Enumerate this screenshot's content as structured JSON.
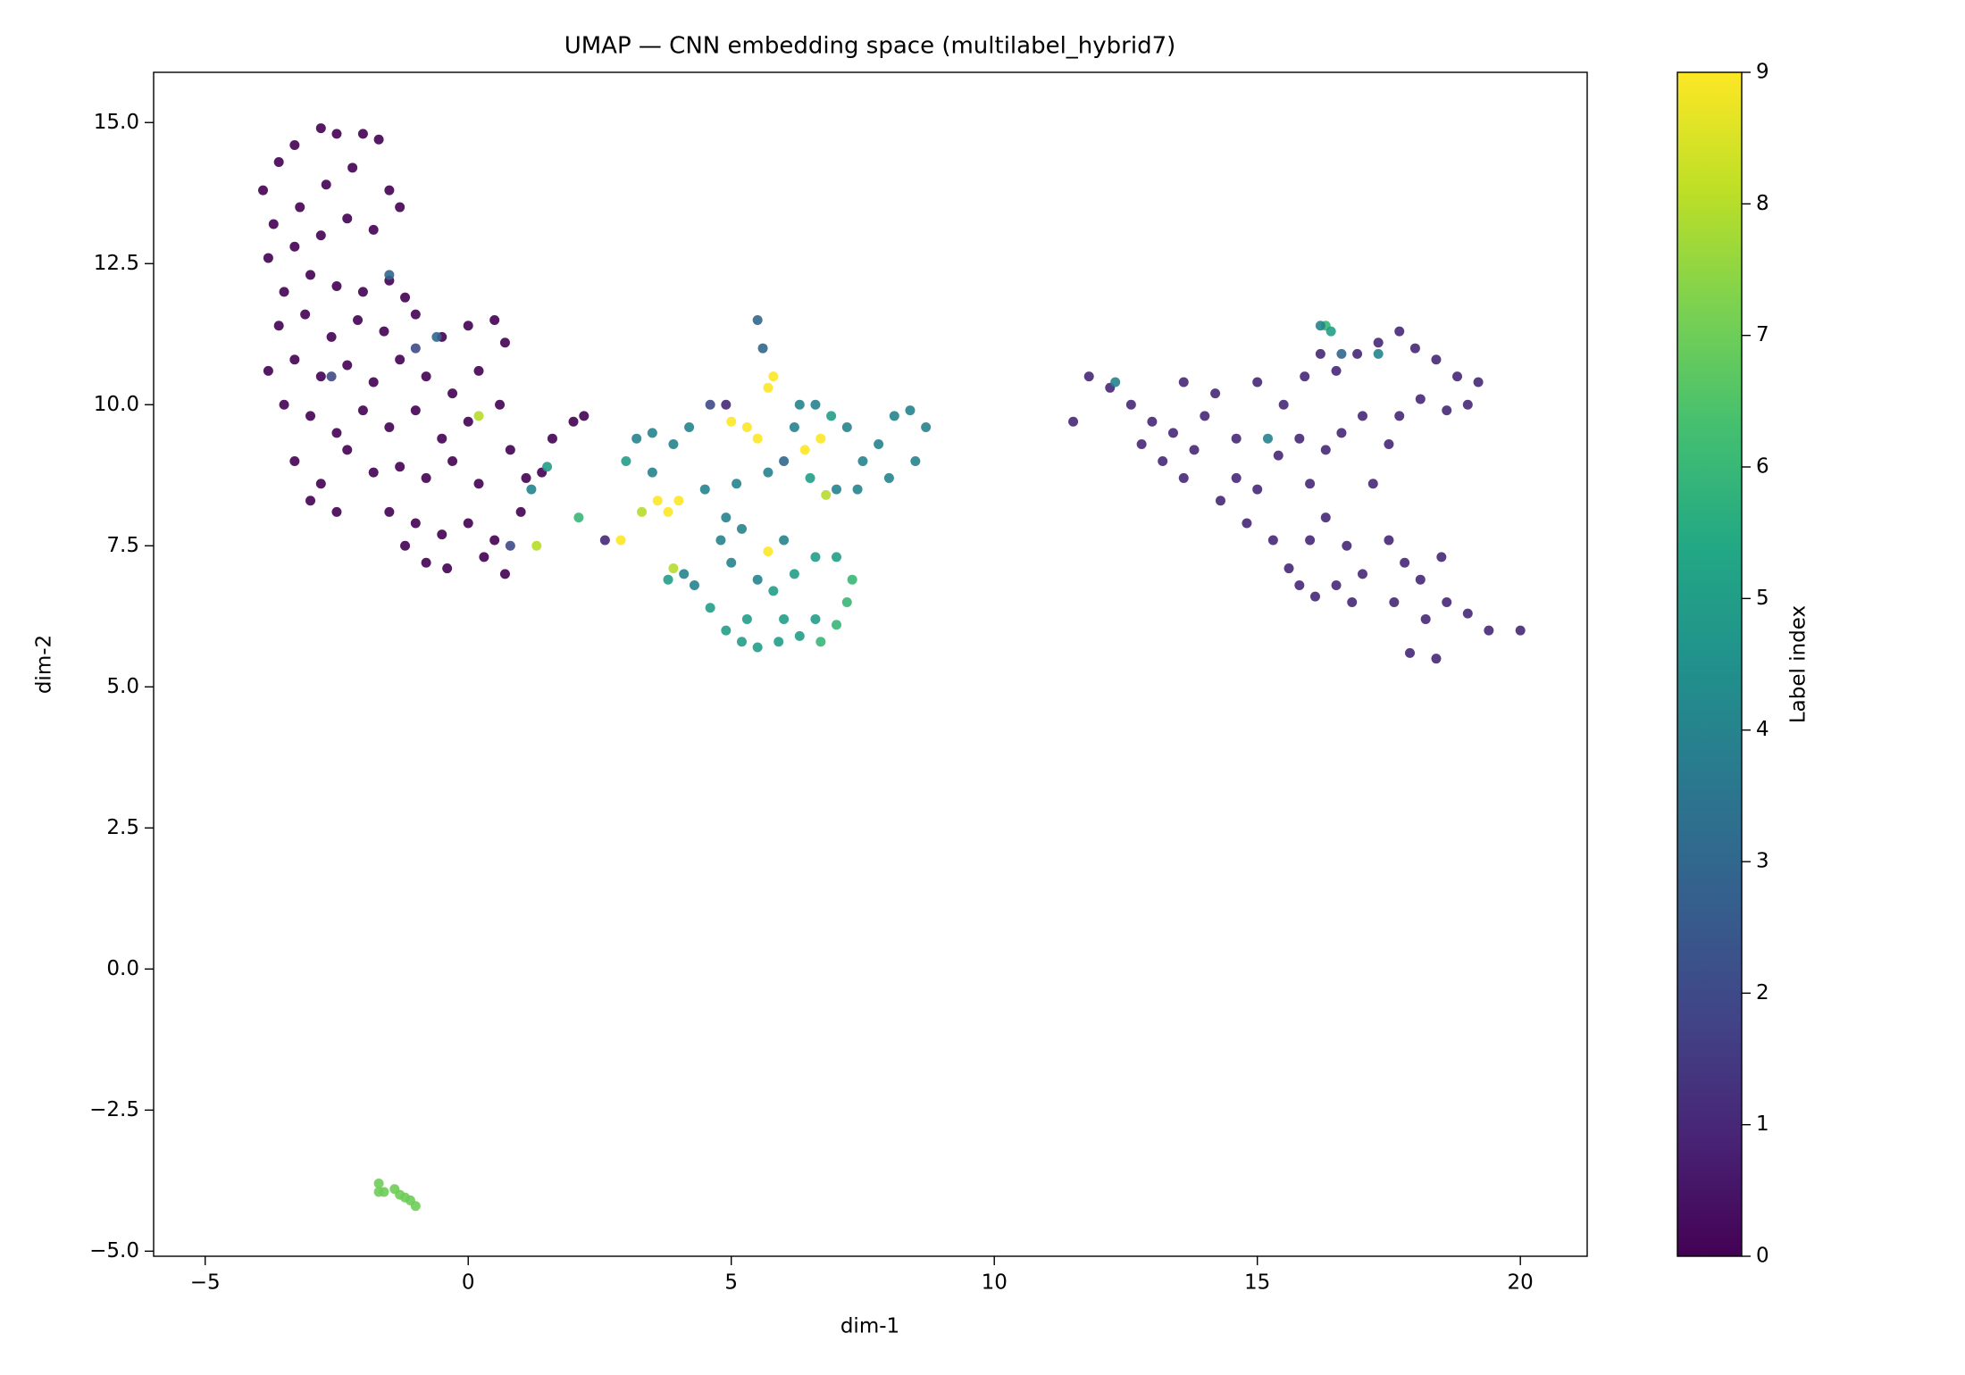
{
  "chart_data": {
    "type": "scatter",
    "title": "UMAP — CNN embedding space (multilabel_hybrid7)",
    "xlabel": "dim-1",
    "ylabel": "dim-2",
    "colormap": "viridis",
    "colorbar_label": "Label index",
    "clim": [
      0,
      9
    ],
    "cticks": [
      0,
      1,
      2,
      3,
      4,
      5,
      6,
      7,
      8,
      9
    ],
    "xlim": [
      -5.98,
      21.27
    ],
    "ylim": [
      -5.09,
      15.89
    ],
    "xticks": [
      {
        "value": -5,
        "label": "−5"
      },
      0,
      5,
      10,
      15,
      20
    ],
    "yticks": [
      {
        "value": -5,
        "label": "−5.0"
      },
      {
        "value": -2.5,
        "label": "−2.5"
      },
      {
        "value": 0,
        "label": "0.0"
      },
      {
        "value": 2.5,
        "label": "2.5"
      },
      {
        "value": 5,
        "label": "5.0"
      },
      {
        "value": 7.5,
        "label": "7.5"
      },
      {
        "value": 10,
        "label": "10.0"
      },
      {
        "value": 12.5,
        "label": "12.5"
      },
      {
        "value": 15,
        "label": "15.0"
      }
    ],
    "grid": false,
    "x": [
      -3.9,
      -3.6,
      -3.3,
      -2.8,
      -2.5,
      -2.0,
      -1.7,
      -3.7,
      -3.2,
      -2.7,
      -2.2,
      -1.5,
      -1.3,
      -3.8,
      -3.3,
      -2.8,
      -2.3,
      -1.8,
      -3.5,
      -3.0,
      -2.5,
      -2.0,
      -1.5,
      -1.2,
      -3.6,
      -3.1,
      -2.6,
      -2.1,
      -1.6,
      -1.0,
      -0.5,
      0.0,
      0.5,
      0.7,
      -3.8,
      -3.3,
      -2.8,
      -2.3,
      -1.8,
      -1.3,
      -0.8,
      -0.3,
      0.2,
      0.6,
      -3.5,
      -3.0,
      -2.5,
      -2.0,
      -1.5,
      -1.0,
      -0.5,
      0.0,
      -3.3,
      -2.8,
      -2.3,
      -1.8,
      -1.3,
      -0.8,
      -0.3,
      0.2,
      0.8,
      1.1,
      -3.0,
      -2.5,
      -1.5,
      -1.0,
      -0.5,
      0.0,
      0.5,
      1.0,
      1.4,
      -1.2,
      -0.8,
      -0.4,
      0.3,
      0.7,
      1.6,
      2.0,
      2.2,
      -1.5,
      -1.0,
      0.8,
      1.2,
      1.5,
      2.1,
      0.2,
      1.3,
      -2.6,
      -0.6,
      3.0,
      3.2,
      3.5,
      3.9,
      4.2,
      3.5,
      3.8,
      3.6,
      4.0,
      3.3,
      2.6,
      2.9,
      3.9,
      3.8,
      4.1,
      4.3,
      4.6,
      4.9,
      5.2,
      5.5,
      5.9,
      6.3,
      6.7,
      7.0,
      7.2,
      7.3,
      7.0,
      6.6,
      6.2,
      5.8,
      5.5,
      5.0,
      4.8,
      5.2,
      5.7,
      6.0,
      4.9,
      4.5,
      5.1,
      5.7,
      5.5,
      5.3,
      5.0,
      5.7,
      5.8,
      5.6,
      5.5,
      6.2,
      6.0,
      6.4,
      6.7,
      6.9,
      7.2,
      7.5,
      7.8,
      8.1,
      8.4,
      8.7,
      8.5,
      8.0,
      7.4,
      7.0,
      6.8,
      6.5,
      6.3,
      6.6,
      4.6,
      4.9,
      6.6,
      6.0,
      5.3,
      11.5,
      11.8,
      12.2,
      12.6,
      13.0,
      12.8,
      13.2,
      13.6,
      13.4,
      13.8,
      13.6,
      14.0,
      14.3,
      14.6,
      14.8,
      15.0,
      15.3,
      15.4,
      15.6,
      15.8,
      16.1,
      16.5,
      16.8,
      17.0,
      16.7,
      16.3,
      16.0,
      15.8,
      15.5,
      15.9,
      16.2,
      16.5,
      16.9,
      17.3,
      17.7,
      18.0,
      18.4,
      18.8,
      19.2,
      19.0,
      18.6,
      18.1,
      17.7,
      17.5,
      17.2,
      17.0,
      16.6,
      16.3,
      16.0,
      17.5,
      17.8,
      18.1,
      17.6,
      18.2,
      18.6,
      19.0,
      19.4,
      20.0,
      18.4,
      17.9,
      18.5,
      15.0,
      14.6,
      14.2,
      16.3,
      16.4,
      16.2,
      17.3,
      15.2,
      12.3,
      16.6,
      -1.7,
      -1.6,
      -1.4,
      -1.3,
      -1.2,
      -1.1,
      -1.0,
      -1.7
    ],
    "values": [
      13.8,
      14.3,
      14.6,
      14.9,
      14.8,
      14.8,
      14.7,
      13.2,
      13.5,
      13.9,
      14.2,
      13.8,
      13.5,
      12.6,
      12.8,
      13.0,
      13.3,
      13.1,
      12.0,
      12.3,
      12.1,
      12.0,
      12.2,
      11.9,
      11.4,
      11.6,
      11.2,
      11.5,
      11.3,
      11.6,
      11.2,
      11.4,
      11.5,
      11.1,
      10.6,
      10.8,
      10.5,
      10.7,
      10.4,
      10.8,
      10.5,
      10.2,
      10.6,
      10.0,
      10.0,
      9.8,
      9.5,
      9.9,
      9.6,
      9.9,
      9.4,
      9.7,
      9.0,
      8.6,
      9.2,
      8.8,
      8.9,
      8.7,
      9.0,
      8.6,
      9.2,
      8.7,
      8.3,
      8.1,
      8.1,
      7.9,
      7.7,
      7.9,
      7.6,
      8.1,
      8.8,
      7.5,
      7.2,
      7.1,
      7.3,
      7.0,
      9.4,
      9.7,
      9.8,
      12.3,
      11.0,
      7.5,
      8.5,
      8.9,
      8.0,
      9.8,
      7.5,
      10.5,
      11.2,
      9.0,
      9.4,
      9.5,
      9.3,
      9.6,
      8.8,
      8.1,
      8.3,
      8.3,
      8.1,
      7.6,
      7.6,
      7.1,
      6.9,
      7.0,
      6.8,
      6.4,
      6.0,
      5.8,
      5.7,
      5.8,
      5.9,
      5.8,
      6.1,
      6.5,
      6.9,
      7.3,
      7.3,
      7.0,
      6.7,
      6.9,
      7.2,
      7.6,
      7.8,
      7.4,
      7.6,
      8.0,
      8.5,
      8.6,
      8.8,
      9.4,
      9.6,
      9.7,
      10.3,
      10.5,
      11.0,
      11.5,
      9.6,
      9.0,
      9.2,
      9.4,
      9.8,
      9.6,
      9.0,
      9.3,
      9.8,
      9.9,
      9.6,
      9.0,
      8.7,
      8.5,
      8.5,
      8.4,
      8.7,
      10.0,
      10.0,
      10.0,
      10.0,
      6.2,
      6.2,
      6.2,
      9.7,
      10.5,
      10.3,
      10.0,
      9.7,
      9.3,
      9.0,
      8.7,
      9.5,
      9.2,
      10.4,
      9.8,
      8.3,
      8.7,
      7.9,
      8.5,
      7.6,
      9.1,
      7.1,
      6.8,
      6.6,
      6.8,
      6.5,
      7.0,
      7.5,
      8.0,
      8.6,
      9.4,
      10.0,
      10.5,
      10.9,
      10.6,
      10.9,
      11.1,
      11.3,
      11.0,
      10.8,
      10.5,
      10.4,
      10.0,
      9.9,
      10.1,
      9.8,
      9.3,
      8.6,
      9.8,
      9.5,
      9.2,
      7.6,
      7.6,
      7.2,
      6.9,
      6.5,
      6.2,
      6.5,
      6.3,
      6.0,
      6.0,
      5.5,
      5.6,
      7.3,
      10.4,
      9.4,
      10.2,
      11.4,
      11.3,
      11.4,
      10.9,
      9.4,
      10.4,
      10.9,
      -3.8,
      -3.95,
      -3.9,
      -4.0,
      -4.05,
      -4.1,
      -4.2,
      -3.95
    ],
    "labels": [
      0,
      0,
      0,
      0,
      0,
      0,
      0,
      0,
      0,
      0,
      0,
      0,
      0,
      0,
      0,
      0,
      0,
      0,
      0,
      0,
      0,
      0,
      0,
      0,
      0,
      0,
      0,
      0,
      0,
      0,
      0,
      0,
      0,
      0,
      0,
      0,
      0,
      0,
      0,
      0,
      0,
      0,
      0,
      0,
      0,
      0,
      0,
      0,
      0,
      0,
      0,
      0,
      0,
      0,
      0,
      0,
      0,
      0,
      0,
      0,
      0,
      0,
      0,
      0,
      0,
      0,
      0,
      0,
      0,
      0,
      0,
      0,
      0,
      0,
      0,
      0,
      0,
      0,
      0,
      3,
      2,
      2,
      4,
      5,
      6,
      8,
      8,
      2,
      3,
      5,
      4,
      4,
      4,
      4,
      4,
      9,
      9,
      9,
      8,
      1,
      9,
      8,
      5,
      4,
      4,
      5,
      5,
      5,
      5,
      5,
      5,
      6,
      6,
      6,
      6,
      5,
      5,
      5,
      5,
      4,
      4,
      4,
      4,
      9,
      4,
      4,
      4,
      4,
      4,
      9,
      9,
      9,
      9,
      9,
      3,
      3,
      4,
      3,
      9,
      9,
      5,
      4,
      4,
      4,
      4,
      4,
      4,
      4,
      4,
      4,
      4,
      8,
      5,
      4,
      4,
      2,
      1,
      5,
      5,
      5,
      1,
      1,
      1,
      1,
      1,
      1,
      1,
      1,
      1,
      1,
      1,
      1,
      1,
      1,
      1,
      1,
      1,
      1,
      1,
      1,
      1,
      1,
      1,
      1,
      1,
      1,
      1,
      1,
      1,
      1,
      1,
      1,
      1,
      1,
      1,
      1,
      1,
      1,
      1,
      1,
      1,
      1,
      1,
      1,
      1,
      1,
      1,
      1,
      1,
      1,
      1,
      1,
      1,
      1,
      1,
      1,
      1,
      1,
      1,
      1,
      1,
      1,
      1,
      1,
      6,
      5,
      4,
      4,
      4,
      4,
      3,
      7,
      7,
      7,
      7,
      7,
      7,
      7,
      7
    ]
  }
}
